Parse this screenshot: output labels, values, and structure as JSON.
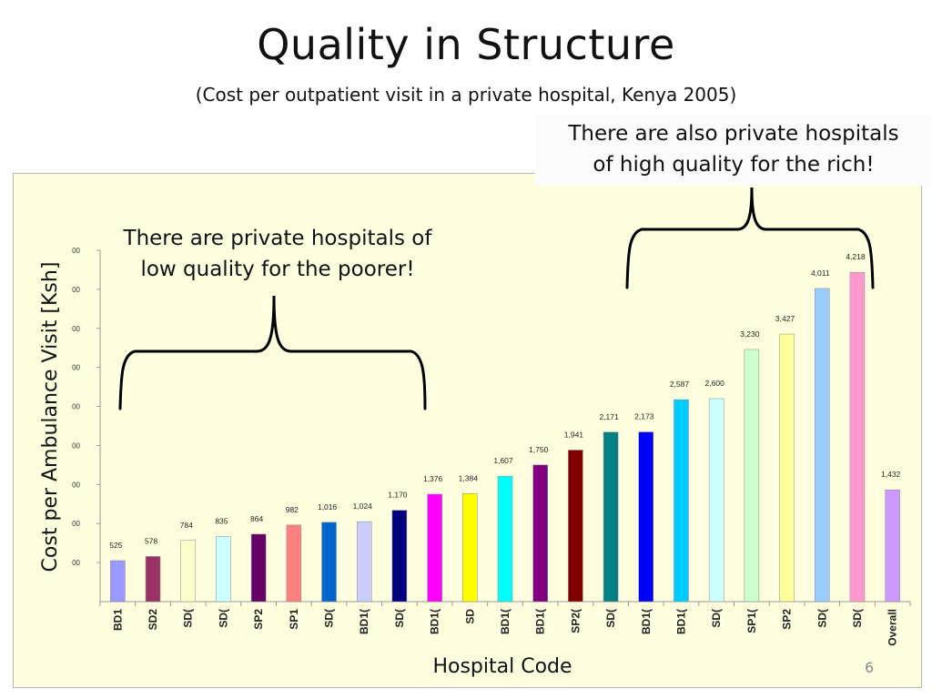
{
  "slide": {
    "title": "Quality in Structure",
    "subtitle": "(Cost per outpatient visit in a private hospital, Kenya 2005)",
    "page_number": "6"
  },
  "callouts": {
    "poor": [
      "There are private hospitals of",
      "low quality for the poorer!"
    ],
    "rich": [
      "There are also private hospitals",
      "of high quality for the rich!"
    ]
  },
  "chart_data": {
    "type": "bar",
    "title": "",
    "xlabel": "Hospital Code",
    "ylabel": "Cost per Ambulance Visit [Ksh]",
    "ylim": [
      0,
      4500
    ],
    "grid": false,
    "legend": "none",
    "y_tick_labels": [
      "00",
      "00",
      "00",
      "00",
      "00",
      "00",
      "00",
      "00",
      "00"
    ],
    "y_tick_values": [
      500,
      1000,
      1500,
      2000,
      2500,
      3000,
      3500,
      4000,
      4500
    ],
    "categories": [
      "BD1",
      "SD2",
      "SD(",
      "SD(",
      "SP2",
      "SP1",
      "SD(",
      "BD1(",
      "SD(",
      "BD1(",
      "SD",
      "BD1(",
      "BD1(",
      "SP2(",
      "SD(",
      "BD1(",
      "BD1(",
      "SD(",
      "SP1(",
      "SP2",
      "SD(",
      "SD(",
      "Overall"
    ],
    "values": [
      525,
      578,
      784,
      835,
      864,
      982,
      1016,
      1024,
      1170,
      1376,
      1384,
      1607,
      1750,
      1941,
      2171,
      2173,
      2587,
      2600,
      3230,
      3427,
      4011,
      4218,
      1432
    ],
    "value_labels": [
      "525",
      "578",
      "784",
      "835",
      "864",
      "982",
      "1,016",
      "1,024",
      "1,170",
      "1,376",
      "1,384",
      "1,607",
      "1,750",
      "1,941",
      "2,171",
      "2,173",
      "2,587",
      "2,600",
      "3,230",
      "3,427",
      "4,011",
      "4,218",
      "1,432"
    ],
    "colors": [
      "#9999ff",
      "#993366",
      "#ffffcc",
      "#ccffff",
      "#660066",
      "#ff8080",
      "#0066cc",
      "#ccccff",
      "#000080",
      "#ff00ff",
      "#ffff00",
      "#00ffff",
      "#800080",
      "#800000",
      "#008080",
      "#0000ff",
      "#00ccff",
      "#ccffff",
      "#ccffcc",
      "#ffff99",
      "#99ccff",
      "#ff99cc",
      "#cc99ff"
    ]
  }
}
